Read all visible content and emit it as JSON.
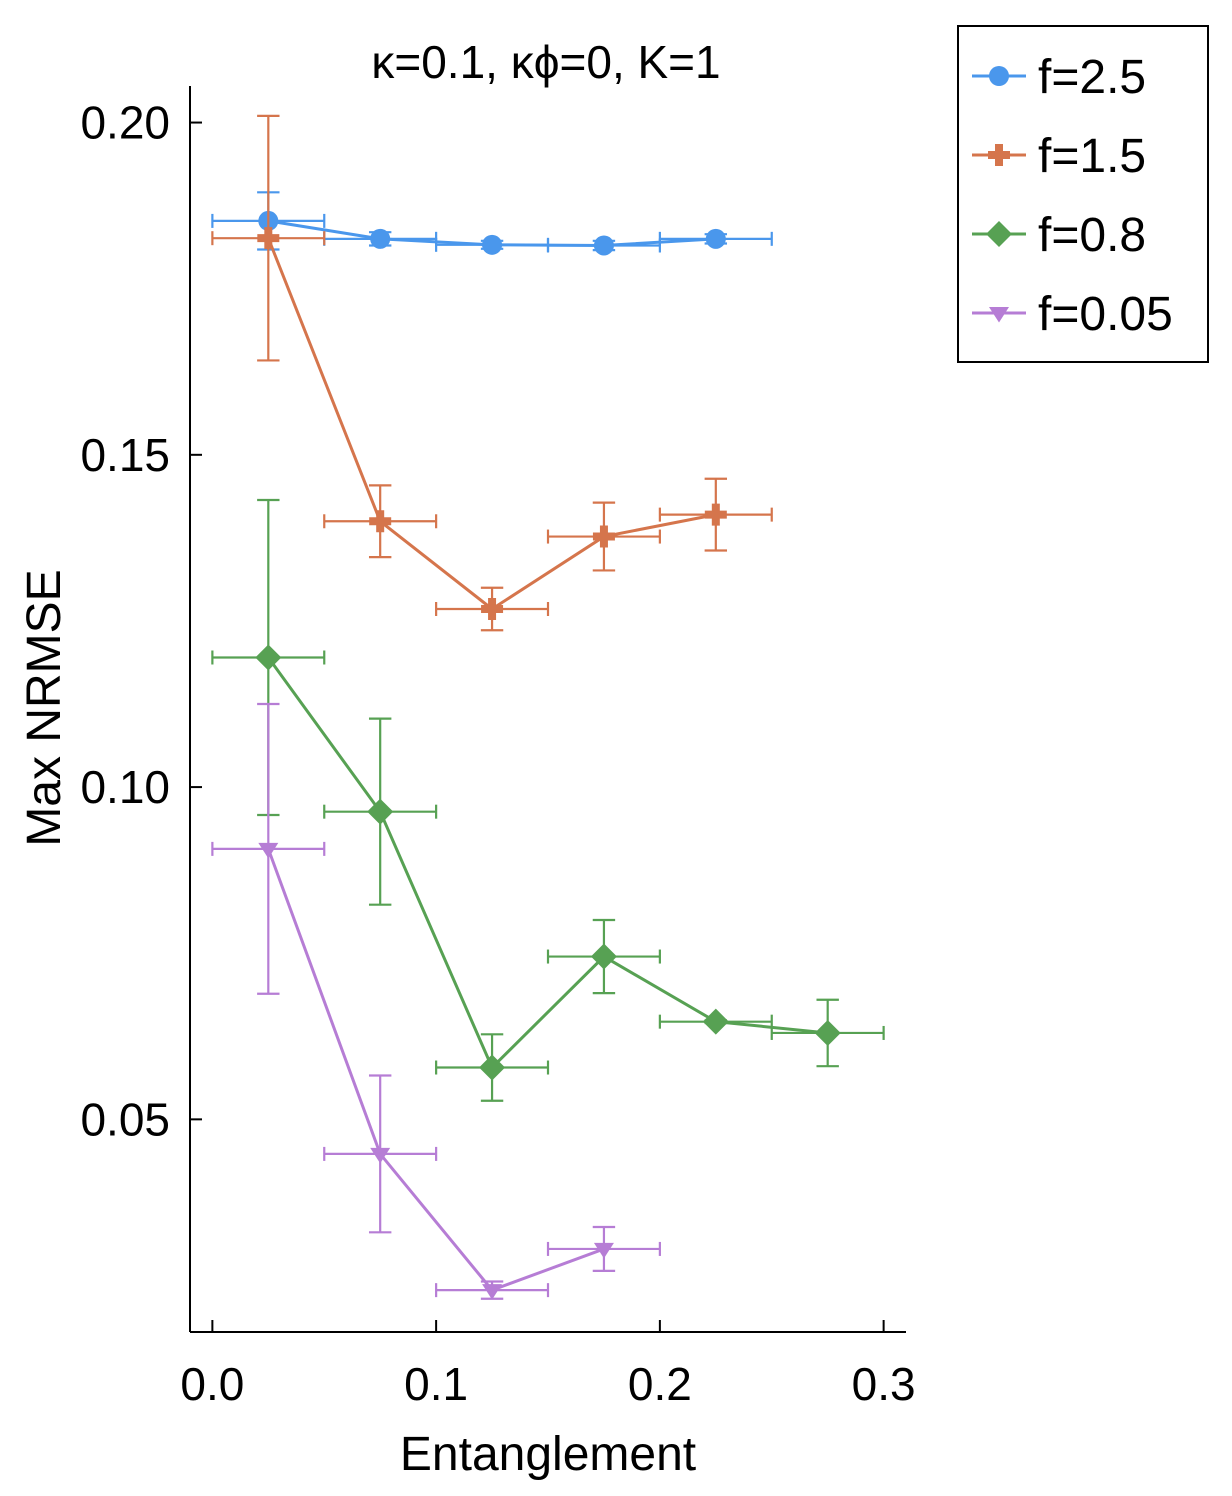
{
  "chart_data": {
    "type": "line",
    "title": "κ=0.1, κϕ=0, K=1",
    "xlabel": "Entanglement",
    "ylabel": "Max NRMSE",
    "xlim": [
      -0.01,
      0.31
    ],
    "ylim": [
      0.018,
      0.2055
    ],
    "xticks": [
      0.0,
      0.1,
      0.2,
      0.3
    ],
    "xtick_labels": [
      "0.0",
      "0.1",
      "0.2",
      "0.3"
    ],
    "yticks": [
      0.05,
      0.1,
      0.15,
      0.2
    ],
    "ytick_labels": [
      "0.05",
      "0.10",
      "0.15",
      "0.20"
    ],
    "grid": false,
    "legend_position": "outside-top-right",
    "series": [
      {
        "name": "f=2.5",
        "color": "#4a97ec",
        "marker": "circle",
        "x": [
          0.025,
          0.075,
          0.125,
          0.175,
          0.225
        ],
        "y": [
          0.1852,
          0.1825,
          0.1816,
          0.1815,
          0.1825
        ],
        "xerr": [
          0.025,
          0.025,
          0.025,
          0.025,
          0.025
        ],
        "yerr": [
          0.0043,
          0.001,
          0.0006,
          0.0007,
          0.0007
        ]
      },
      {
        "name": "f=1.5",
        "color": "#d5754c",
        "marker": "cross",
        "x": [
          0.025,
          0.075,
          0.125,
          0.175,
          0.225
        ],
        "y": [
          0.1826,
          0.14,
          0.1268,
          0.1377,
          0.141
        ],
        "xerr": [
          0.025,
          0.025,
          0.025,
          0.025,
          0.025
        ],
        "yerr": [
          0.0184,
          0.0054,
          0.0032,
          0.0051,
          0.0054
        ]
      },
      {
        "name": "f=0.8",
        "color": "#57a153",
        "marker": "diamond",
        "x": [
          0.025,
          0.075,
          0.125,
          0.175,
          0.225,
          0.275
        ],
        "y": [
          0.1195,
          0.0963,
          0.0578,
          0.0745,
          0.0647,
          0.063
        ],
        "xerr": [
          0.025,
          0.025,
          0.025,
          0.025,
          0.025,
          0.025
        ],
        "yerr": [
          0.0237,
          0.014,
          0.005,
          0.0055,
          0.0002,
          0.005
        ]
      },
      {
        "name": "f=0.05",
        "color": "#b67dd5",
        "marker": "triangle-down",
        "x": [
          0.025,
          0.075,
          0.125,
          0.175
        ],
        "y": [
          0.0907,
          0.0448,
          0.0243,
          0.0305
        ],
        "xerr": [
          0.025,
          0.025,
          0.025,
          0.025
        ],
        "yerr": [
          0.0218,
          0.0118,
          0.0013,
          0.0033
        ]
      }
    ]
  }
}
